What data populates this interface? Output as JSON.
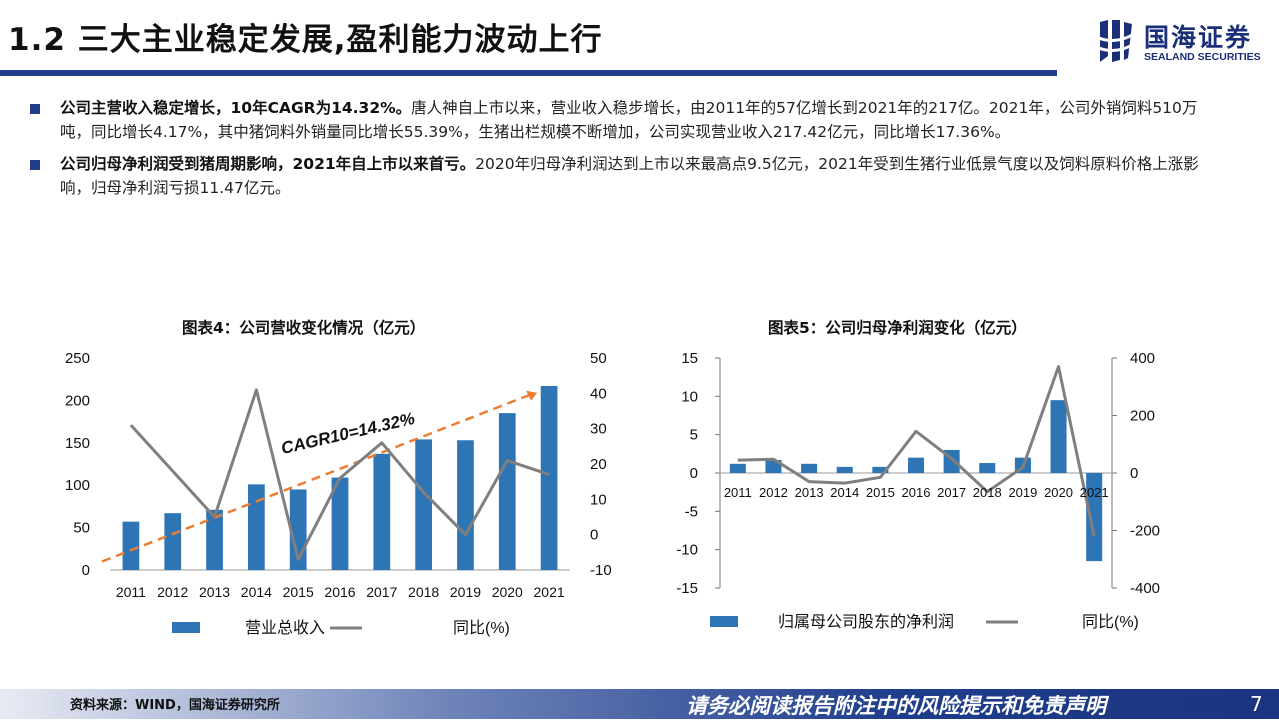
{
  "header": {
    "title": "1.2 三大主业稳定发展,盈利能力波动上行"
  },
  "logo": {
    "name_cn": "国海证券",
    "name_en": "SEALAND SECURITIES"
  },
  "bullets": [
    {
      "bold": "公司主营收入稳定增长，10年CAGR为14.32%。",
      "text": "唐人神自上市以来，营业收入稳步增长，由2011年的57亿增长到2021年的217亿。2021年，公司外销饲料510万吨，同比增长4.17%，其中猪饲料外销量同比增长55.39%，生猪出栏规模不断增加，公司实现营业收入217.42亿元，同比增长17.36%。"
    },
    {
      "bold": "公司归母净利润受到猪周期影响，2021年自上市以来首亏。",
      "text": "2020年归母净利润达到上市以来最高点9.5亿元，2021年受到生猪行业低景气度以及饲料原料价格上涨影响，归母净利润亏损11.47亿元。"
    }
  ],
  "chart_data": [
    {
      "type": "bar",
      "title": "图表4：公司营收变化情况（亿元）",
      "categories": [
        "2011",
        "2012",
        "2013",
        "2014",
        "2015",
        "2016",
        "2017",
        "2018",
        "2019",
        "2020",
        "2021"
      ],
      "series": [
        {
          "name": "营业总收入",
          "type": "bar",
          "axis": "left",
          "values": [
            57,
            67,
            71,
            101,
            95,
            109,
            137,
            154,
            153,
            185,
            217
          ]
        },
        {
          "name": "同比(%)",
          "type": "line",
          "axis": "right",
          "values": [
            31,
            null,
            5,
            41,
            -7,
            16,
            26,
            12,
            0,
            21,
            17
          ]
        }
      ],
      "left_axis": {
        "min": 0,
        "max": 250,
        "ticks": [
          0,
          50,
          100,
          150,
          200,
          250
        ]
      },
      "right_axis": {
        "min": -10,
        "max": 50,
        "ticks": [
          -10,
          0,
          10,
          20,
          30,
          40,
          50
        ]
      },
      "annotation": "CAGR10=14.32%",
      "trend_line": {
        "from": 10,
        "to": 209
      },
      "legend_position": "bottom",
      "colors": {
        "bar": "#2e75b6",
        "line": "#7f7f7f",
        "trend": "#ed7d31"
      }
    },
    {
      "type": "bar",
      "title": "图表5：公司归母净利润变化（亿元）",
      "categories": [
        "2011",
        "2012",
        "2013",
        "2014",
        "2015",
        "2016",
        "2017",
        "2018",
        "2019",
        "2020",
        "2021"
      ],
      "series": [
        {
          "name": "归属母公司股东的净利润",
          "type": "bar",
          "axis": "left",
          "values": [
            1.2,
            1.7,
            1.2,
            0.8,
            0.8,
            2.0,
            3.0,
            1.3,
            2.0,
            9.5,
            -11.5
          ]
        },
        {
          "name": "同比(%)",
          "type": "line",
          "axis": "right",
          "values": [
            45,
            48,
            -30,
            -35,
            -15,
            145,
            50,
            -65,
            20,
            370,
            -220
          ]
        }
      ],
      "left_axis": {
        "min": -15,
        "max": 15,
        "ticks": [
          -15,
          -10,
          -5,
          0,
          5,
          10,
          15
        ]
      },
      "right_axis": {
        "min": -400,
        "max": 400,
        "ticks": [
          -400,
          -200,
          0,
          200,
          400
        ]
      },
      "legend_position": "bottom",
      "colors": {
        "bar": "#2e75b6",
        "line": "#7f7f7f"
      }
    }
  ],
  "footer": {
    "source": "资料来源：WIND，国海证券研究所",
    "disclaimer": "请务必阅读报告附注中的风险提示和免责声明",
    "page": "7"
  }
}
